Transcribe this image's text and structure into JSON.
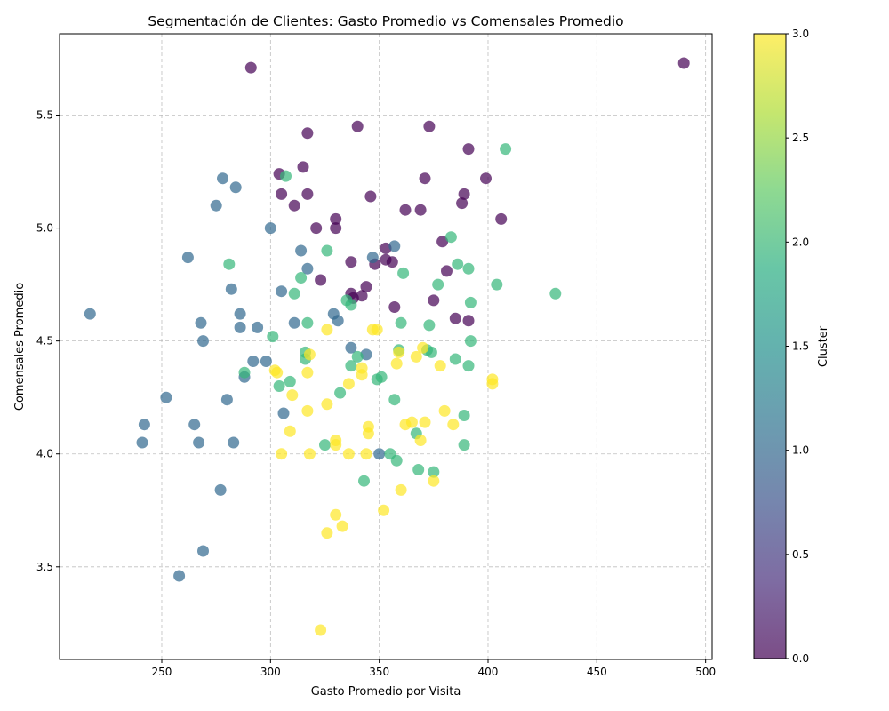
{
  "chart_data": {
    "type": "scatter",
    "title": "Segmentación de Clientes: Gasto Promedio vs Comensales Promedio",
    "xlabel": "Gasto Promedio por Visita",
    "ylabel": "Comensales Promedio",
    "xlim": [
      203,
      503
    ],
    "ylim": [
      3.09,
      5.86
    ],
    "xticks": [
      "250",
      "300",
      "350",
      "400",
      "450",
      "500"
    ],
    "yticks": [
      "3.5",
      "4.0",
      "4.5",
      "5.0",
      "5.5"
    ],
    "grid": true,
    "marker_alpha": 0.7,
    "colorbar": {
      "label": "Cluster",
      "range": [
        0,
        3
      ],
      "ticks": [
        "0.0",
        "0.5",
        "1.0",
        "1.5",
        "2.0",
        "2.5",
        "3.0"
      ],
      "colormap": "viridis"
    },
    "cluster_colors": {
      "0": "#440154",
      "1": "#31688e",
      "2": "#35b779",
      "3": "#fde725"
    },
    "series": [
      {
        "cluster": 0,
        "points": [
          [
            291,
            5.71
          ],
          [
            490,
            5.73
          ],
          [
            317,
            5.42
          ],
          [
            340,
            5.45
          ],
          [
            373,
            5.45
          ],
          [
            391,
            5.35
          ],
          [
            315,
            5.27
          ],
          [
            304,
            5.24
          ],
          [
            371,
            5.22
          ],
          [
            399,
            5.22
          ],
          [
            305,
            5.15
          ],
          [
            317,
            5.15
          ],
          [
            346,
            5.14
          ],
          [
            389,
            5.15
          ],
          [
            311,
            5.1
          ],
          [
            388,
            5.11
          ],
          [
            362,
            5.08
          ],
          [
            369,
            5.08
          ],
          [
            330,
            5.04
          ],
          [
            406,
            5.04
          ],
          [
            321,
            5.0
          ],
          [
            330,
            5.0
          ],
          [
            379,
            4.94
          ],
          [
            353,
            4.91
          ],
          [
            353,
            4.86
          ],
          [
            356,
            4.85
          ],
          [
            337,
            4.85
          ],
          [
            348,
            4.84
          ],
          [
            381,
            4.81
          ],
          [
            323,
            4.77
          ],
          [
            344,
            4.74
          ],
          [
            337,
            4.71
          ],
          [
            342,
            4.7
          ],
          [
            338,
            4.69
          ],
          [
            375,
            4.68
          ],
          [
            357,
            4.65
          ],
          [
            385,
            4.6
          ],
          [
            391,
            4.59
          ]
        ]
      },
      {
        "cluster": 1,
        "points": [
          [
            278,
            5.22
          ],
          [
            284,
            5.18
          ],
          [
            275,
            5.1
          ],
          [
            300,
            5.0
          ],
          [
            357,
            4.92
          ],
          [
            314,
            4.9
          ],
          [
            262,
            4.87
          ],
          [
            347,
            4.87
          ],
          [
            317,
            4.82
          ],
          [
            282,
            4.73
          ],
          [
            305,
            4.72
          ],
          [
            217,
            4.62
          ],
          [
            286,
            4.62
          ],
          [
            329,
            4.62
          ],
          [
            268,
            4.58
          ],
          [
            311,
            4.58
          ],
          [
            331,
            4.59
          ],
          [
            286,
            4.56
          ],
          [
            294,
            4.56
          ],
          [
            269,
            4.5
          ],
          [
            337,
            4.47
          ],
          [
            344,
            4.44
          ],
          [
            292,
            4.41
          ],
          [
            298,
            4.41
          ],
          [
            288,
            4.34
          ],
          [
            252,
            4.25
          ],
          [
            280,
            4.24
          ],
          [
            306,
            4.18
          ],
          [
            242,
            4.13
          ],
          [
            265,
            4.13
          ],
          [
            241,
            4.05
          ],
          [
            267,
            4.05
          ],
          [
            283,
            4.05
          ],
          [
            350,
            4.0
          ],
          [
            277,
            3.84
          ],
          [
            269,
            3.57
          ],
          [
            258,
            3.46
          ]
        ]
      },
      {
        "cluster": 2,
        "points": [
          [
            408,
            5.35
          ],
          [
            307,
            5.23
          ],
          [
            383,
            4.96
          ],
          [
            326,
            4.9
          ],
          [
            281,
            4.84
          ],
          [
            386,
            4.84
          ],
          [
            391,
            4.82
          ],
          [
            361,
            4.8
          ],
          [
            314,
            4.78
          ],
          [
            377,
            4.75
          ],
          [
            404,
            4.75
          ],
          [
            311,
            4.71
          ],
          [
            431,
            4.71
          ],
          [
            335,
            4.68
          ],
          [
            392,
            4.67
          ],
          [
            337,
            4.66
          ],
          [
            317,
            4.58
          ],
          [
            360,
            4.58
          ],
          [
            373,
            4.57
          ],
          [
            301,
            4.52
          ],
          [
            392,
            4.5
          ],
          [
            359,
            4.46
          ],
          [
            372,
            4.46
          ],
          [
            374,
            4.45
          ],
          [
            316,
            4.45
          ],
          [
            340,
            4.43
          ],
          [
            385,
            4.42
          ],
          [
            316,
            4.42
          ],
          [
            391,
            4.39
          ],
          [
            337,
            4.39
          ],
          [
            288,
            4.36
          ],
          [
            351,
            4.34
          ],
          [
            349,
            4.33
          ],
          [
            309,
            4.32
          ],
          [
            304,
            4.3
          ],
          [
            332,
            4.27
          ],
          [
            357,
            4.24
          ],
          [
            389,
            4.17
          ],
          [
            367,
            4.09
          ],
          [
            325,
            4.04
          ],
          [
            389,
            4.04
          ],
          [
            355,
            4.0
          ],
          [
            358,
            3.97
          ],
          [
            368,
            3.93
          ],
          [
            375,
            3.92
          ],
          [
            343,
            3.88
          ]
        ]
      },
      {
        "cluster": 3,
        "points": [
          [
            347,
            4.55
          ],
          [
            349,
            4.55
          ],
          [
            326,
            4.55
          ],
          [
            370,
            4.47
          ],
          [
            359,
            4.45
          ],
          [
            318,
            4.44
          ],
          [
            367,
            4.43
          ],
          [
            358,
            4.4
          ],
          [
            378,
            4.39
          ],
          [
            302,
            4.37
          ],
          [
            303,
            4.36
          ],
          [
            317,
            4.36
          ],
          [
            342,
            4.38
          ],
          [
            342,
            4.35
          ],
          [
            402,
            4.33
          ],
          [
            402,
            4.31
          ],
          [
            336,
            4.31
          ],
          [
            310,
            4.26
          ],
          [
            326,
            4.22
          ],
          [
            317,
            4.19
          ],
          [
            380,
            4.19
          ],
          [
            365,
            4.14
          ],
          [
            371,
            4.14
          ],
          [
            362,
            4.13
          ],
          [
            384,
            4.13
          ],
          [
            345,
            4.12
          ],
          [
            309,
            4.1
          ],
          [
            345,
            4.09
          ],
          [
            369,
            4.06
          ],
          [
            330,
            4.06
          ],
          [
            330,
            4.04
          ],
          [
            305,
            4.0
          ],
          [
            318,
            4.0
          ],
          [
            336,
            4.0
          ],
          [
            344,
            4.0
          ],
          [
            375,
            3.88
          ],
          [
            360,
            3.84
          ],
          [
            352,
            3.75
          ],
          [
            330,
            3.73
          ],
          [
            333,
            3.68
          ],
          [
            326,
            3.65
          ],
          [
            323,
            3.22
          ]
        ]
      }
    ]
  }
}
